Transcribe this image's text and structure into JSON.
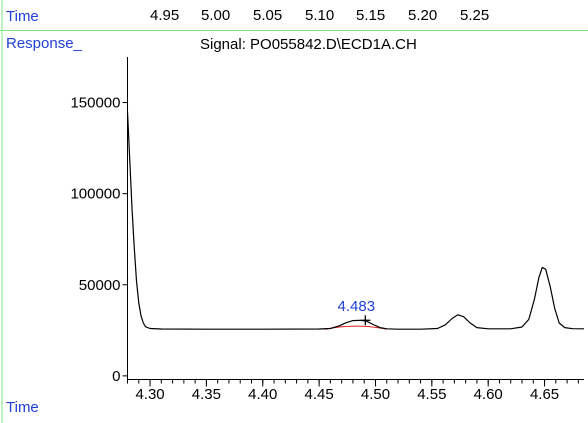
{
  "header": {
    "time_label": "Time",
    "response_label": "Response_",
    "top_time_ticks": [
      "4.95",
      "5.00",
      "5.05",
      "5.10",
      "5.15",
      "5.20",
      "5.25"
    ]
  },
  "footer": {
    "time_label": "Time"
  },
  "colors": {
    "label_blue": "#1f3fd6",
    "frame_green": "#7fe07f",
    "trace": "#000000",
    "peak_baseline": "#e02020"
  },
  "chart_data": {
    "type": "line",
    "title": "Signal: PO055842.D\\ECD1A.CH",
    "xlabel": "Time",
    "ylabel": "Response_",
    "xlim": [
      4.28,
      4.685
    ],
    "ylim": [
      -2000,
      175000
    ],
    "x_ticks": [
      4.3,
      4.35,
      4.4,
      4.45,
      4.5,
      4.55,
      4.6,
      4.65
    ],
    "x_tick_labels": [
      "4.30",
      "4.35",
      "4.40",
      "4.45",
      "4.50",
      "4.55",
      "4.60",
      "4.65"
    ],
    "y_ticks": [
      0,
      50000,
      100000,
      150000
    ],
    "y_tick_labels": [
      "0",
      "50000",
      "100000",
      "150000"
    ],
    "series": [
      {
        "points": [
          [
            4.28,
            145000
          ],
          [
            4.282,
            118000
          ],
          [
            4.284,
            92000
          ],
          [
            4.286,
            70000
          ],
          [
            4.288,
            52000
          ],
          [
            4.29,
            40000
          ],
          [
            4.292,
            33000
          ],
          [
            4.294,
            29000
          ],
          [
            4.296,
            27000
          ],
          [
            4.3,
            26000
          ],
          [
            4.31,
            25700
          ],
          [
            4.35,
            25600
          ],
          [
            4.4,
            25600
          ],
          [
            4.45,
            25700
          ],
          [
            4.46,
            26000
          ],
          [
            4.468,
            27500
          ],
          [
            4.474,
            29200
          ],
          [
            4.48,
            30300
          ],
          [
            4.486,
            30500
          ],
          [
            4.492,
            30000
          ],
          [
            4.498,
            28200
          ],
          [
            4.504,
            26500
          ],
          [
            4.51,
            25800
          ],
          [
            4.52,
            25600
          ],
          [
            4.54,
            25600
          ],
          [
            4.555,
            26000
          ],
          [
            4.562,
            28000
          ],
          [
            4.568,
            31500
          ],
          [
            4.573,
            33500
          ],
          [
            4.578,
            32500
          ],
          [
            4.584,
            29000
          ],
          [
            4.59,
            26500
          ],
          [
            4.6,
            25800
          ],
          [
            4.62,
            25800
          ],
          [
            4.63,
            26800
          ],
          [
            4.636,
            31000
          ],
          [
            4.641,
            42000
          ],
          [
            4.645,
            54000
          ],
          [
            4.648,
            59500
          ],
          [
            4.651,
            58500
          ],
          [
            4.655,
            49000
          ],
          [
            4.659,
            37000
          ],
          [
            4.663,
            29000
          ],
          [
            4.668,
            26500
          ],
          [
            4.675,
            25900
          ],
          [
            4.685,
            25800
          ]
        ]
      }
    ],
    "peak_baseline": [
      [
        4.455,
        25600
      ],
      [
        4.483,
        29000
      ],
      [
        4.51,
        25600
      ]
    ],
    "annotations": [
      {
        "label": "4.483",
        "x": 4.483,
        "y": 35500
      }
    ],
    "marker": {
      "symbol": "+",
      "x": 4.491,
      "y": 30500
    }
  }
}
